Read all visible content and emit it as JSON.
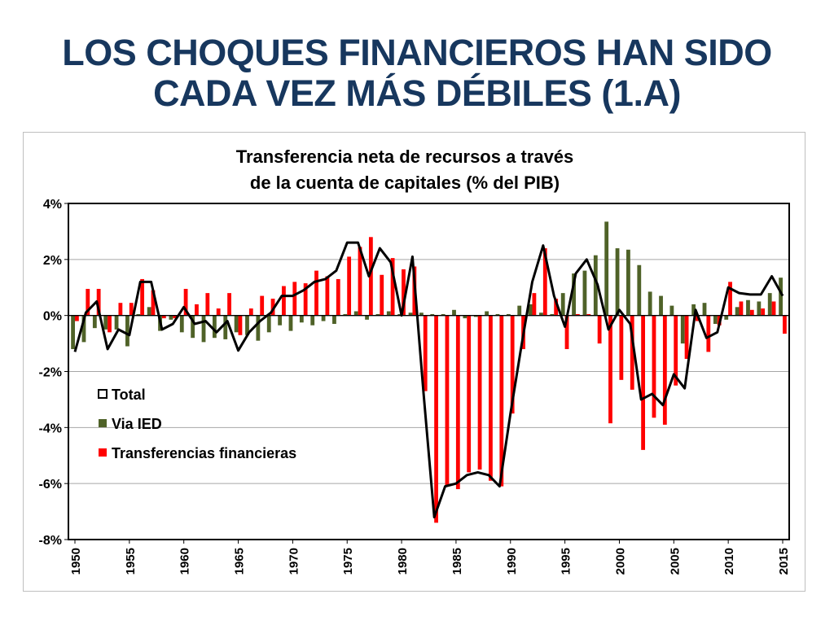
{
  "slide": {
    "title_line1": "LOS CHOQUES FINANCIEROS HAN SIDO",
    "title_line2": "CADA VEZ MÁS DÉBILES (1.A)"
  },
  "chart_data": {
    "type": "bar",
    "title_lines": [
      "Transferencia neta de recursos a través",
      "de la cuenta de capitales  (% del PIB)"
    ],
    "xlabel": "",
    "ylabel": "",
    "ylim": [
      -8,
      4
    ],
    "yticks": [
      4,
      2,
      0,
      -2,
      -4,
      -6,
      -8
    ],
    "ytick_labels": [
      "4%",
      "2%",
      "0%",
      "-2%",
      "-4%",
      "-6%",
      "-8%"
    ],
    "xtick_labels": [
      "1950",
      "1955",
      "1960",
      "1965",
      "1970",
      "1975",
      "1980",
      "1985",
      "1990",
      "1995",
      "2000",
      "2005",
      "2010",
      "2015"
    ],
    "grid": true,
    "legend_position": "lower-left",
    "x": [
      1950,
      1951,
      1952,
      1953,
      1954,
      1955,
      1956,
      1957,
      1958,
      1959,
      1960,
      1961,
      1962,
      1963,
      1964,
      1965,
      1966,
      1967,
      1968,
      1969,
      1970,
      1971,
      1972,
      1973,
      1974,
      1975,
      1976,
      1977,
      1978,
      1979,
      1980,
      1981,
      1982,
      1983,
      1984,
      1985,
      1986,
      1987,
      1988,
      1989,
      1990,
      1991,
      1992,
      1993,
      1994,
      1995,
      1996,
      1997,
      1998,
      1999,
      2000,
      2001,
      2002,
      2003,
      2004,
      2005,
      2006,
      2007,
      2008,
      2009,
      2010,
      2011,
      2012,
      2013,
      2014,
      2015
    ],
    "series": [
      {
        "name": "Total",
        "kind": "line",
        "color": "#000000",
        "values": [
          -1.3,
          0.1,
          0.5,
          -1.2,
          -0.5,
          -0.7,
          1.2,
          1.2,
          -0.5,
          -0.3,
          0.3,
          -0.3,
          -0.2,
          -0.6,
          -0.2,
          -1.25,
          -0.6,
          -0.2,
          0.1,
          0.7,
          0.7,
          0.9,
          1.2,
          1.3,
          1.6,
          2.6,
          2.6,
          1.4,
          2.4,
          1.9,
          0.0,
          2.1,
          -2.7,
          -7.2,
          -6.1,
          -6.0,
          -5.7,
          -5.6,
          -5.7,
          -6.1,
          -3.5,
          -1.1,
          1.2,
          2.5,
          0.7,
          -0.4,
          1.5,
          2.0,
          1.1,
          -0.5,
          0.2,
          -0.3,
          -3.0,
          -2.8,
          -3.2,
          -2.1,
          -2.6,
          0.2,
          -0.8,
          -0.6,
          1.0,
          0.8,
          0.75,
          0.75,
          1.4,
          0.7
        ]
      },
      {
        "name": "Via IED",
        "kind": "bar",
        "color": "#4f6228",
        "values": [
          -1.2,
          -0.95,
          -0.45,
          -0.5,
          -0.5,
          -1.1,
          0.05,
          0.3,
          -0.55,
          -0.15,
          -0.6,
          -0.8,
          -0.95,
          -0.8,
          -0.85,
          -0.6,
          -0.7,
          -0.9,
          -0.6,
          -0.35,
          -0.55,
          -0.25,
          -0.35,
          -0.2,
          -0.3,
          0.05,
          0.15,
          -0.15,
          0.05,
          0.15,
          0.05,
          0.1,
          0.1,
          0.05,
          0.05,
          0.2,
          -0.1,
          -0.05,
          0.15,
          0.05,
          0.05,
          0.35,
          0.4,
          0.1,
          0.05,
          0.8,
          1.5,
          1.6,
          2.15,
          3.35,
          2.4,
          2.35,
          1.8,
          0.85,
          0.7,
          0.35,
          -1.0,
          0.4,
          0.45,
          -0.3,
          -0.15,
          0.3,
          0.55,
          0.5,
          0.8,
          1.35
        ]
      },
      {
        "name": "Transferencias financieras",
        "kind": "bar",
        "color": "#ff0000",
        "values": [
          -0.2,
          0.95,
          0.95,
          -0.6,
          0.45,
          0.45,
          1.3,
          0.9,
          -0.1,
          -0.1,
          0.95,
          0.4,
          0.8,
          0.25,
          0.8,
          -0.7,
          0.25,
          0.7,
          0.6,
          1.05,
          1.2,
          1.15,
          1.6,
          1.4,
          1.3,
          2.1,
          2.45,
          2.8,
          1.45,
          2.05,
          1.65,
          1.75,
          -2.7,
          -7.4,
          -6.1,
          -6.2,
          -5.6,
          -5.5,
          -5.9,
          -6.1,
          -3.5,
          -1.2,
          0.8,
          2.4,
          0.6,
          -1.2,
          0.05,
          0.05,
          -1.0,
          -3.85,
          -2.3,
          -2.65,
          -4.8,
          -3.65,
          -3.9,
          -2.5,
          -1.55,
          -0.2,
          -1.3,
          -0.35,
          1.2,
          0.5,
          0.2,
          0.25,
          0.5,
          -0.65
        ]
      }
    ]
  }
}
